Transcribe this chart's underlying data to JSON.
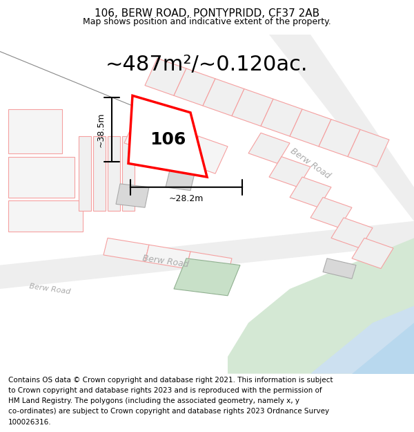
{
  "title": "106, BERW ROAD, PONTYPRIDD, CF37 2AB",
  "subtitle": "Map shows position and indicative extent of the property.",
  "area_text": "~487m²/~0.120ac.",
  "label_106": "106",
  "dim_height": "~38.5m",
  "dim_width": "~28.2m",
  "footer": "Contains OS data © Crown copyright and database right 2021. This information is subject to Crown copyright and database rights 2023 and is reproduced with the permission of HM Land Registry. The polygons (including the associated geometry, namely x, y co-ordinates) are subject to Crown copyright and database rights 2023 Ordnance Survey 100026316.",
  "bg_color": "#f8f8f8",
  "map_bg": "#ffffff",
  "road_color_light": "#f5c0c0",
  "road_color_dark": "#cccccc",
  "highlight_color": "#ff0000",
  "green_area": "#d4e8d4",
  "blue_area": "#cce0f0",
  "road_label_color": "#aaaaaa",
  "title_fontsize": 11,
  "subtitle_fontsize": 9,
  "area_fontsize": 22,
  "label_fontsize": 18,
  "footer_fontsize": 7.5
}
